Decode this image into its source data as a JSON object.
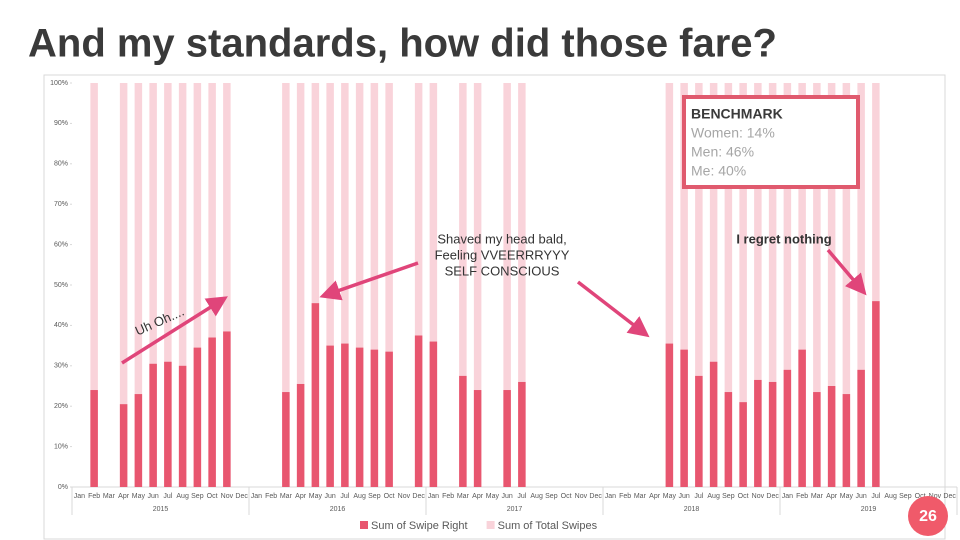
{
  "chart_data": {
    "type": "bar",
    "title": "And my standards, how did those fare?",
    "categories": [
      "Jan",
      "Feb",
      "Mar",
      "Apr",
      "May",
      "Jun",
      "Jul",
      "Aug",
      "Sep",
      "Oct",
      "Nov",
      "Dec",
      "Jan",
      "Feb",
      "Mar",
      "Apr",
      "May",
      "Jun",
      "Jul",
      "Aug",
      "Sep",
      "Oct",
      "Nov",
      "Dec",
      "Jan",
      "Feb",
      "Mar",
      "Apr",
      "May",
      "Jun",
      "Jul",
      "Aug",
      "Sep",
      "Oct",
      "Nov",
      "Dec",
      "Jan",
      "Feb",
      "Mar",
      "Apr",
      "May",
      "Jun",
      "Jul",
      "Aug",
      "Sep",
      "Oct",
      "Nov",
      "Dec",
      "Jan",
      "Feb",
      "Mar",
      "Apr",
      "May",
      "Jun",
      "Jul",
      "Aug",
      "Sep",
      "Oct",
      "Nov",
      "Dec"
    ],
    "category_groups": [
      "2015",
      "2016",
      "2017",
      "2018",
      "2019"
    ],
    "series": [
      {
        "name": "Sum of Total Swipes",
        "color": "#f9d3da",
        "values": [
          null,
          100,
          null,
          100,
          100,
          100,
          100,
          100,
          100,
          100,
          100,
          null,
          null,
          null,
          100,
          100,
          100,
          100,
          100,
          100,
          100,
          100,
          null,
          100,
          100,
          null,
          100,
          100,
          null,
          100,
          100,
          null,
          null,
          null,
          null,
          null,
          null,
          null,
          null,
          null,
          100,
          100,
          100,
          100,
          100,
          100,
          100,
          100,
          100,
          100,
          100,
          100,
          100,
          100,
          100,
          null,
          null,
          null,
          null,
          null
        ]
      },
      {
        "name": "Sum of Swipe Right",
        "color": "#e8566f",
        "values": [
          null,
          24,
          null,
          20.5,
          23,
          30.5,
          31,
          30,
          34.5,
          37,
          38.5,
          null,
          null,
          null,
          23.5,
          25.5,
          45.5,
          35,
          35.5,
          34.5,
          34,
          33.5,
          null,
          37.5,
          36,
          null,
          27.5,
          24,
          null,
          24,
          26,
          null,
          null,
          null,
          null,
          null,
          null,
          null,
          null,
          null,
          35.5,
          34,
          27.5,
          31,
          23.5,
          21,
          26.5,
          26,
          29,
          34,
          23.5,
          25,
          23,
          29,
          46,
          null,
          null,
          null,
          null,
          null
        ]
      }
    ],
    "legend_order": [
      1,
      0
    ],
    "ylim": [
      0,
      100
    ],
    "yticks": [
      {
        "value": 0,
        "label": "0%"
      },
      {
        "value": 10,
        "label": "10%"
      },
      {
        "value": 20,
        "label": "20%"
      },
      {
        "value": 30,
        "label": "30%"
      },
      {
        "value": 40,
        "label": "40%"
      },
      {
        "value": 50,
        "label": "50%"
      },
      {
        "value": 60,
        "label": "60%"
      },
      {
        "value": 70,
        "label": "70%"
      },
      {
        "value": 80,
        "label": "80%"
      },
      {
        "value": 90,
        "label": "90%"
      },
      {
        "value": 100,
        "label": "100%"
      }
    ],
    "annotations": {
      "uh_oh": "Uh Oh....",
      "shaved": [
        "Shaved my head bald,",
        "Feeling VVEERRRYYY",
        "SELF CONSCIOUS"
      ],
      "regret": "I regret nothing"
    },
    "benchmark": {
      "title": "BENCHMARK",
      "lines": [
        "Women: 14%",
        "Men: 46%",
        "Me: 40%"
      ]
    },
    "page_number": "26"
  }
}
